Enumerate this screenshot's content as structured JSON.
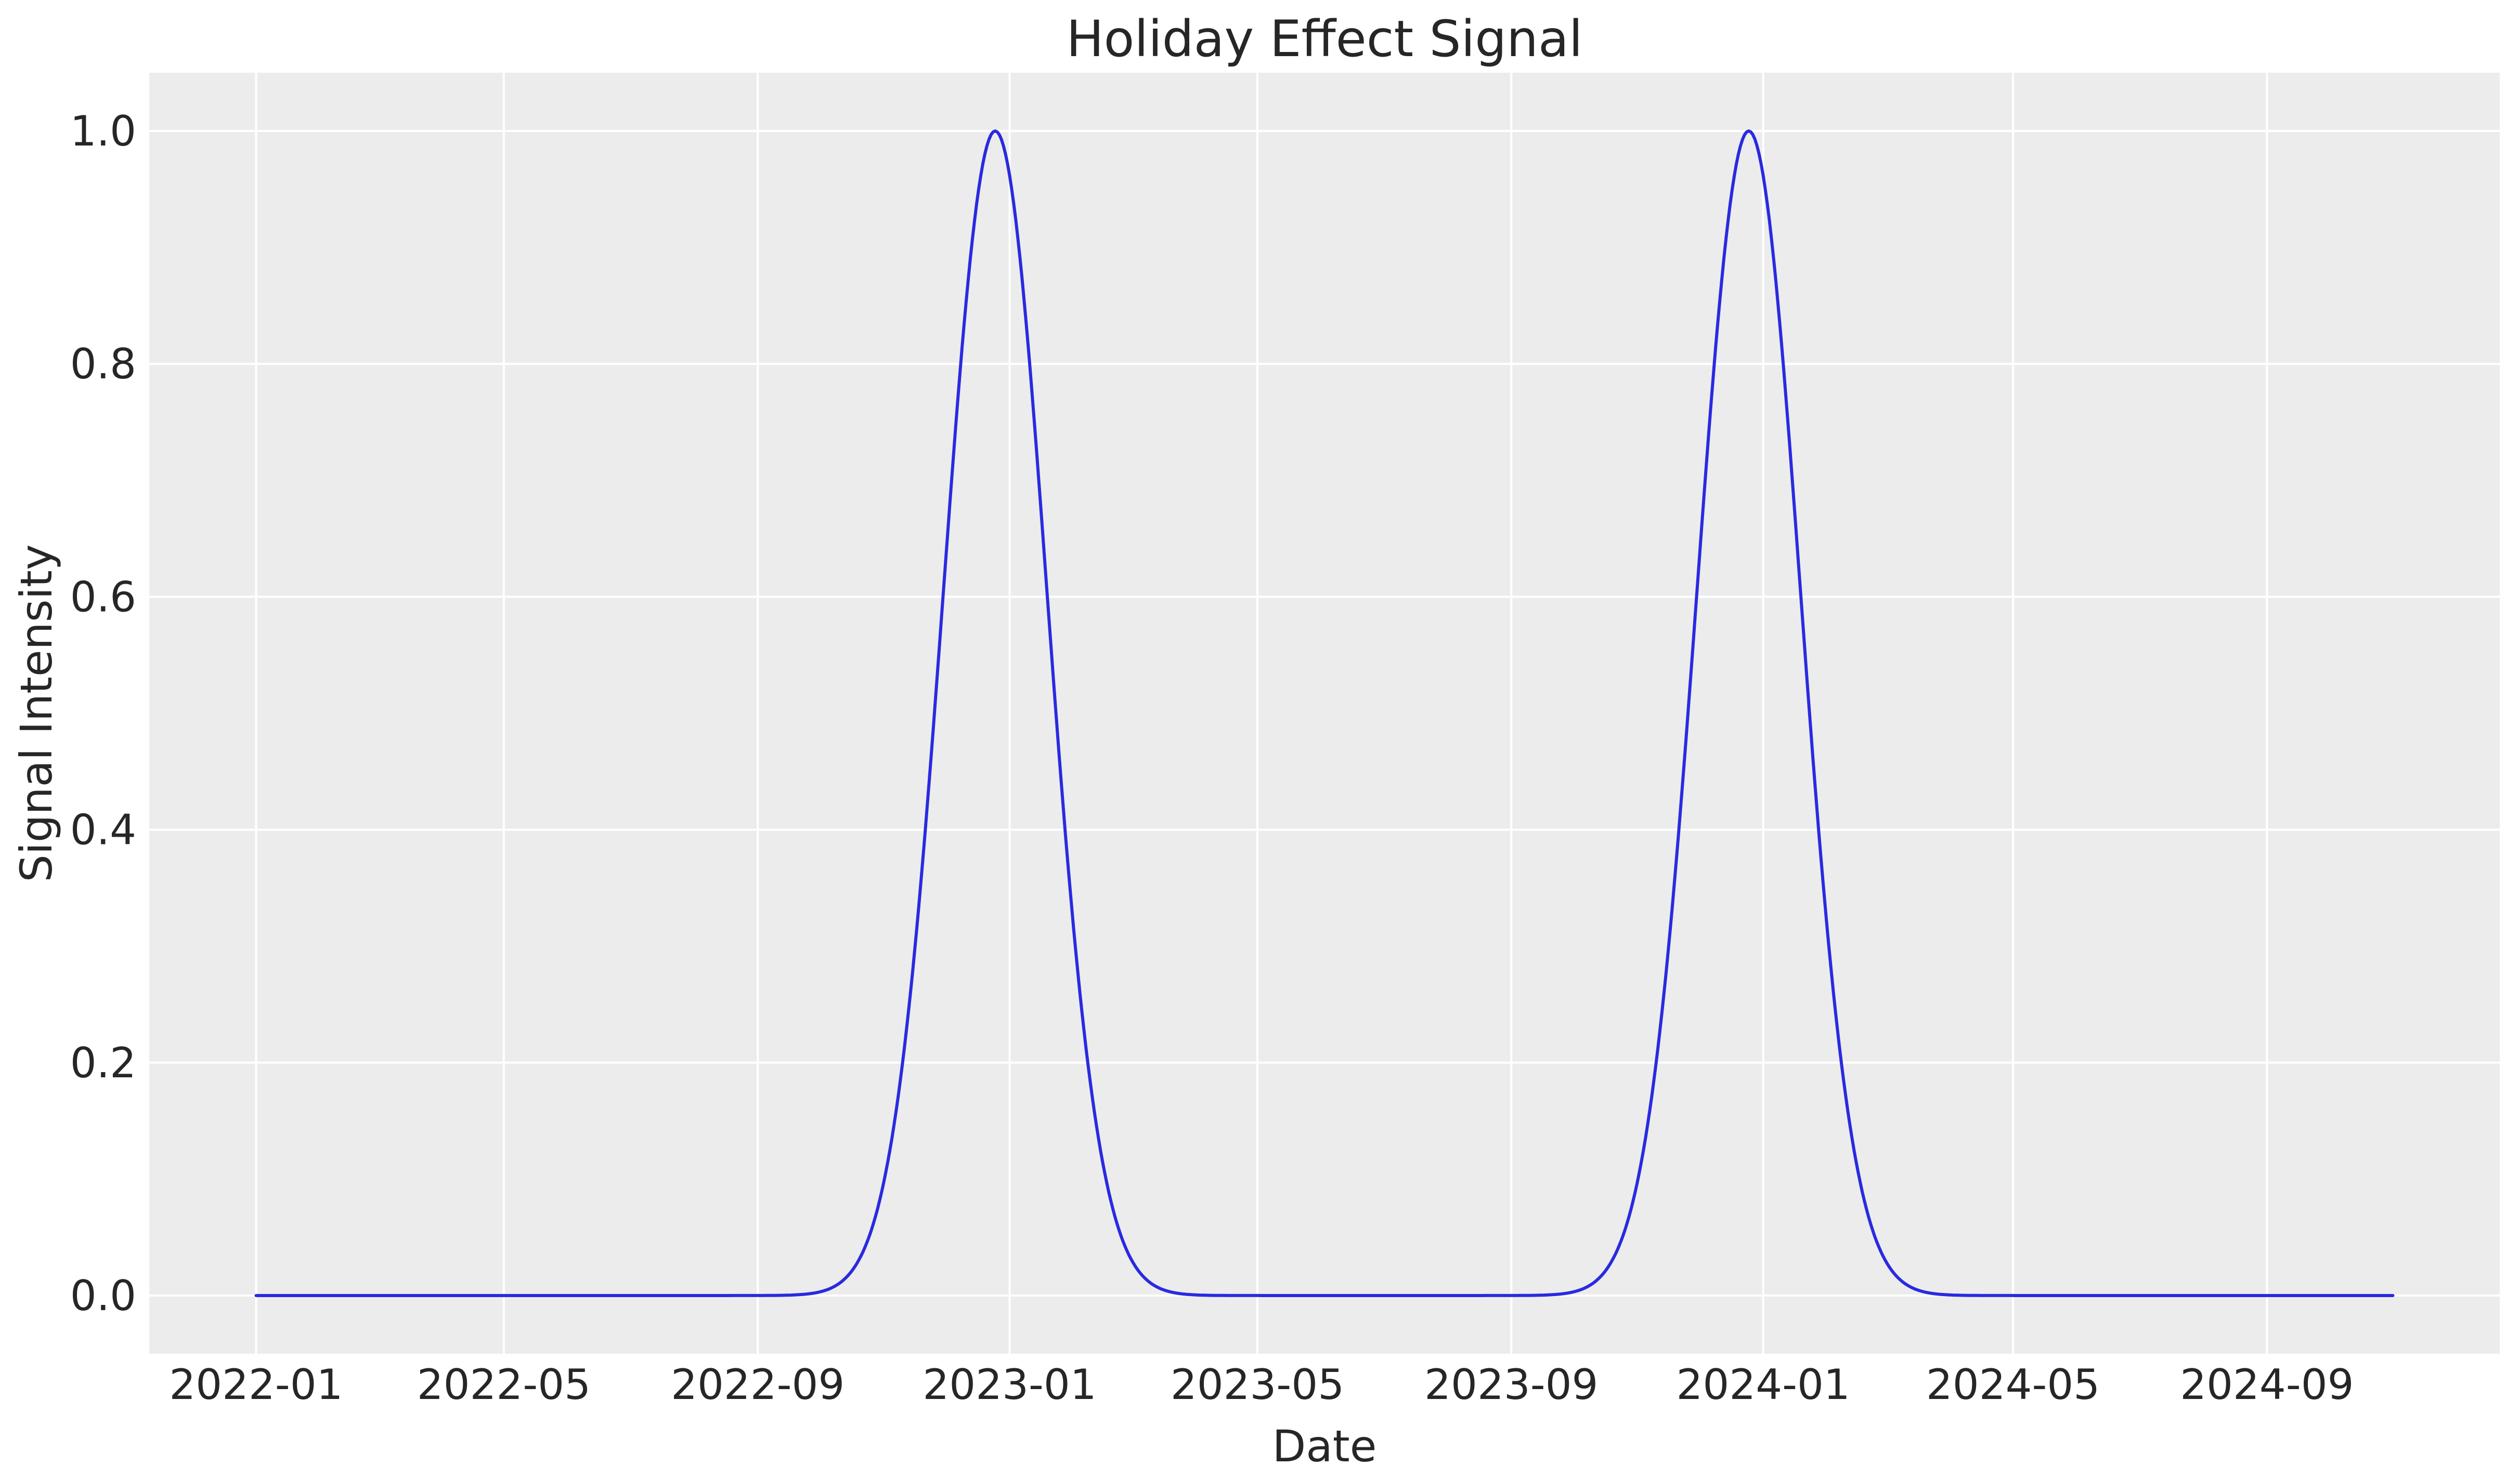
{
  "figure": {
    "background": "#ffffff"
  },
  "chart_data": {
    "type": "line",
    "title": "Holiday Effect Signal",
    "xlabel": "Date",
    "ylabel": "Signal Intensity",
    "x_start": "2022-01-01",
    "x_end": "2024-11-01",
    "x_ticks": [
      {
        "label": "2022-01",
        "date": "2022-01-01"
      },
      {
        "label": "2022-05",
        "date": "2022-05-01"
      },
      {
        "label": "2022-09",
        "date": "2022-09-01"
      },
      {
        "label": "2023-01",
        "date": "2023-01-01"
      },
      {
        "label": "2023-05",
        "date": "2023-05-01"
      },
      {
        "label": "2023-09",
        "date": "2023-09-01"
      },
      {
        "label": "2024-01",
        "date": "2024-01-01"
      },
      {
        "label": "2024-05",
        "date": "2024-05-01"
      },
      {
        "label": "2024-09",
        "date": "2024-09-01"
      }
    ],
    "y_ticks": [
      0.0,
      0.2,
      0.4,
      0.6,
      0.8,
      1.0
    ],
    "ylim": [
      -0.05,
      1.05
    ],
    "x_margin_frac": 0.05,
    "grid": true,
    "legend": false,
    "series": [
      {
        "name": "holiday-effect-signal",
        "model": "gaussian_peaks",
        "baseline": 0.0,
        "amplitude": 1.0,
        "sigma_days": 25,
        "peak_dates": [
          "2022-12-25",
          "2023-12-25"
        ],
        "peak_value": 1.0,
        "color": "#2a2ae0",
        "line_width": 6
      }
    ],
    "colors": {
      "plot_background": "#ececec",
      "grid": "#ffffff",
      "text": "#262626",
      "line": "#2a2ae0"
    }
  }
}
